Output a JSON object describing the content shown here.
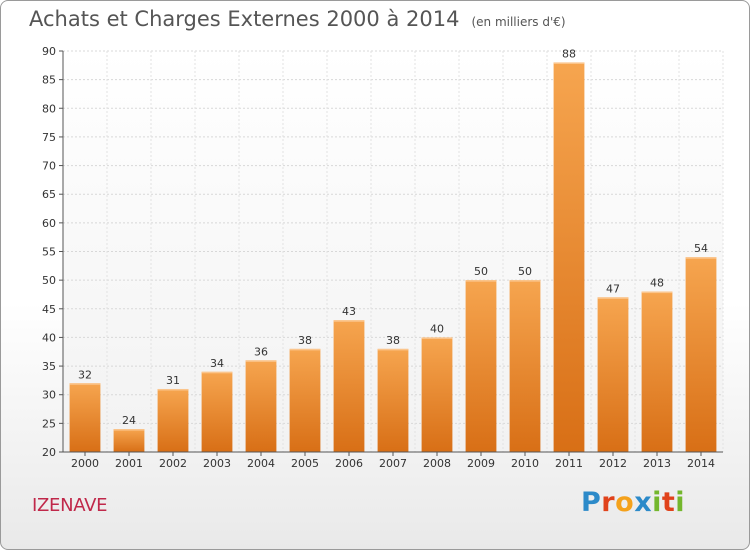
{
  "header": {
    "title": "Achats et Charges Externes 2000 à 2014",
    "subtitle": "(en milliers d'€)"
  },
  "footer": {
    "commune": "IZENAVE",
    "logo": {
      "letters": [
        "P",
        "r",
        "o",
        "x",
        "i",
        "t",
        "i"
      ],
      "colors": [
        "#2c8ac9",
        "#e0421b",
        "#f4a11b",
        "#2c8ac9",
        "#74b72d",
        "#e0421b",
        "#74b72d"
      ]
    }
  },
  "chart_data": {
    "type": "bar",
    "categories": [
      "2000",
      "2001",
      "2002",
      "2003",
      "2004",
      "2005",
      "2006",
      "2007",
      "2008",
      "2009",
      "2010",
      "2011",
      "2012",
      "2013",
      "2014"
    ],
    "values": [
      32,
      24,
      31,
      34,
      36,
      38,
      43,
      38,
      40,
      50,
      50,
      88,
      47,
      48,
      54
    ],
    "title": "Achats et Charges Externes 2000 à 2014",
    "subtitle": "(en milliers d'€)",
    "ylim": [
      20,
      90
    ],
    "yticks": [
      20,
      25,
      30,
      35,
      40,
      45,
      50,
      55,
      60,
      65,
      70,
      75,
      80,
      85,
      90
    ],
    "grid": true,
    "bar_color_top": "#f6a54f",
    "bar_color_bottom": "#d86f16"
  }
}
